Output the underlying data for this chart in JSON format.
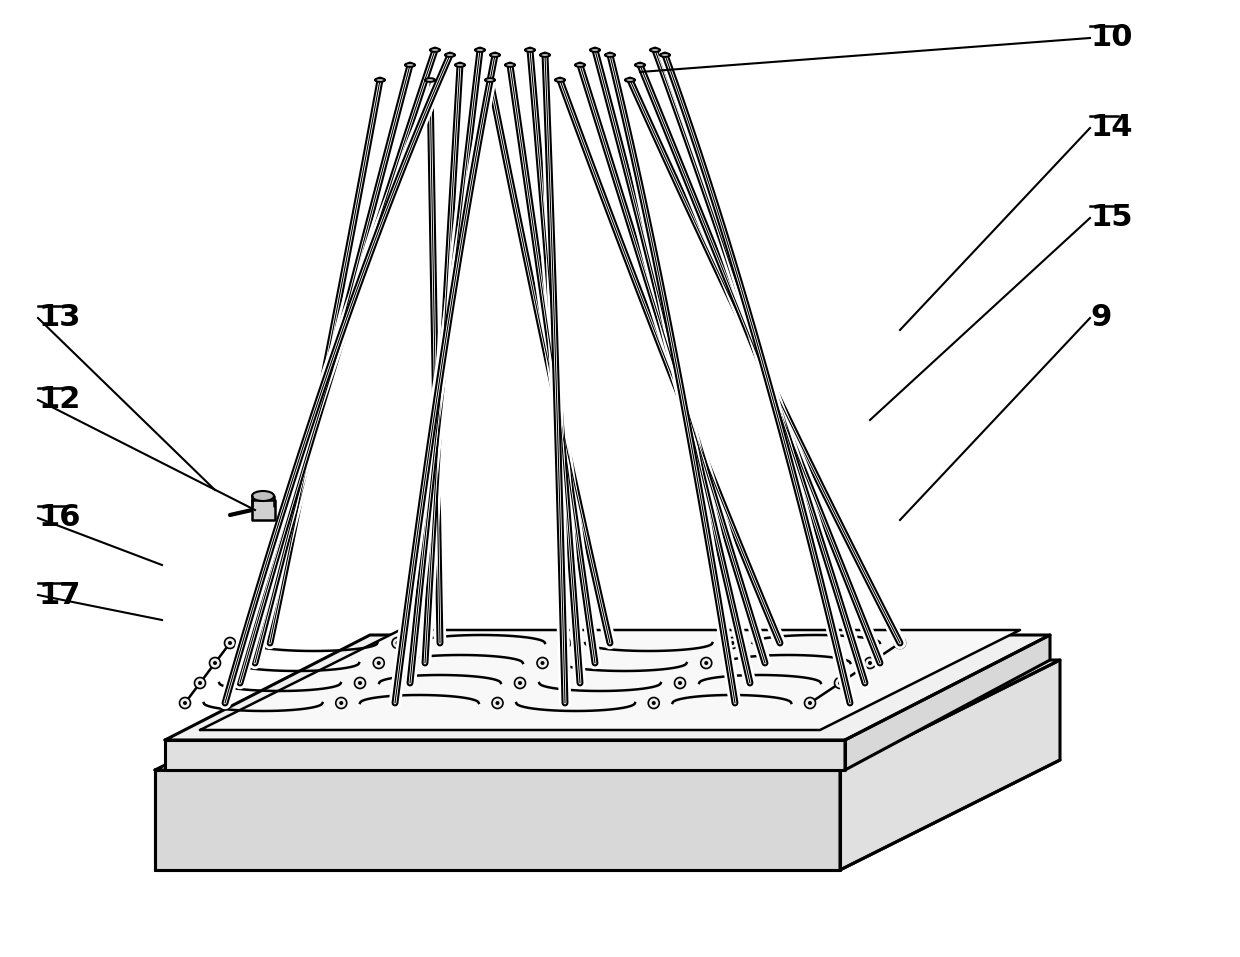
{
  "bg_color": "#ffffff",
  "line_color": "#000000",
  "label_color": "#000000",
  "fig_width": 12.4,
  "fig_height": 9.57,
  "dpi": 100,
  "label_fontsize": 22,
  "label_fontweight": "bold"
}
